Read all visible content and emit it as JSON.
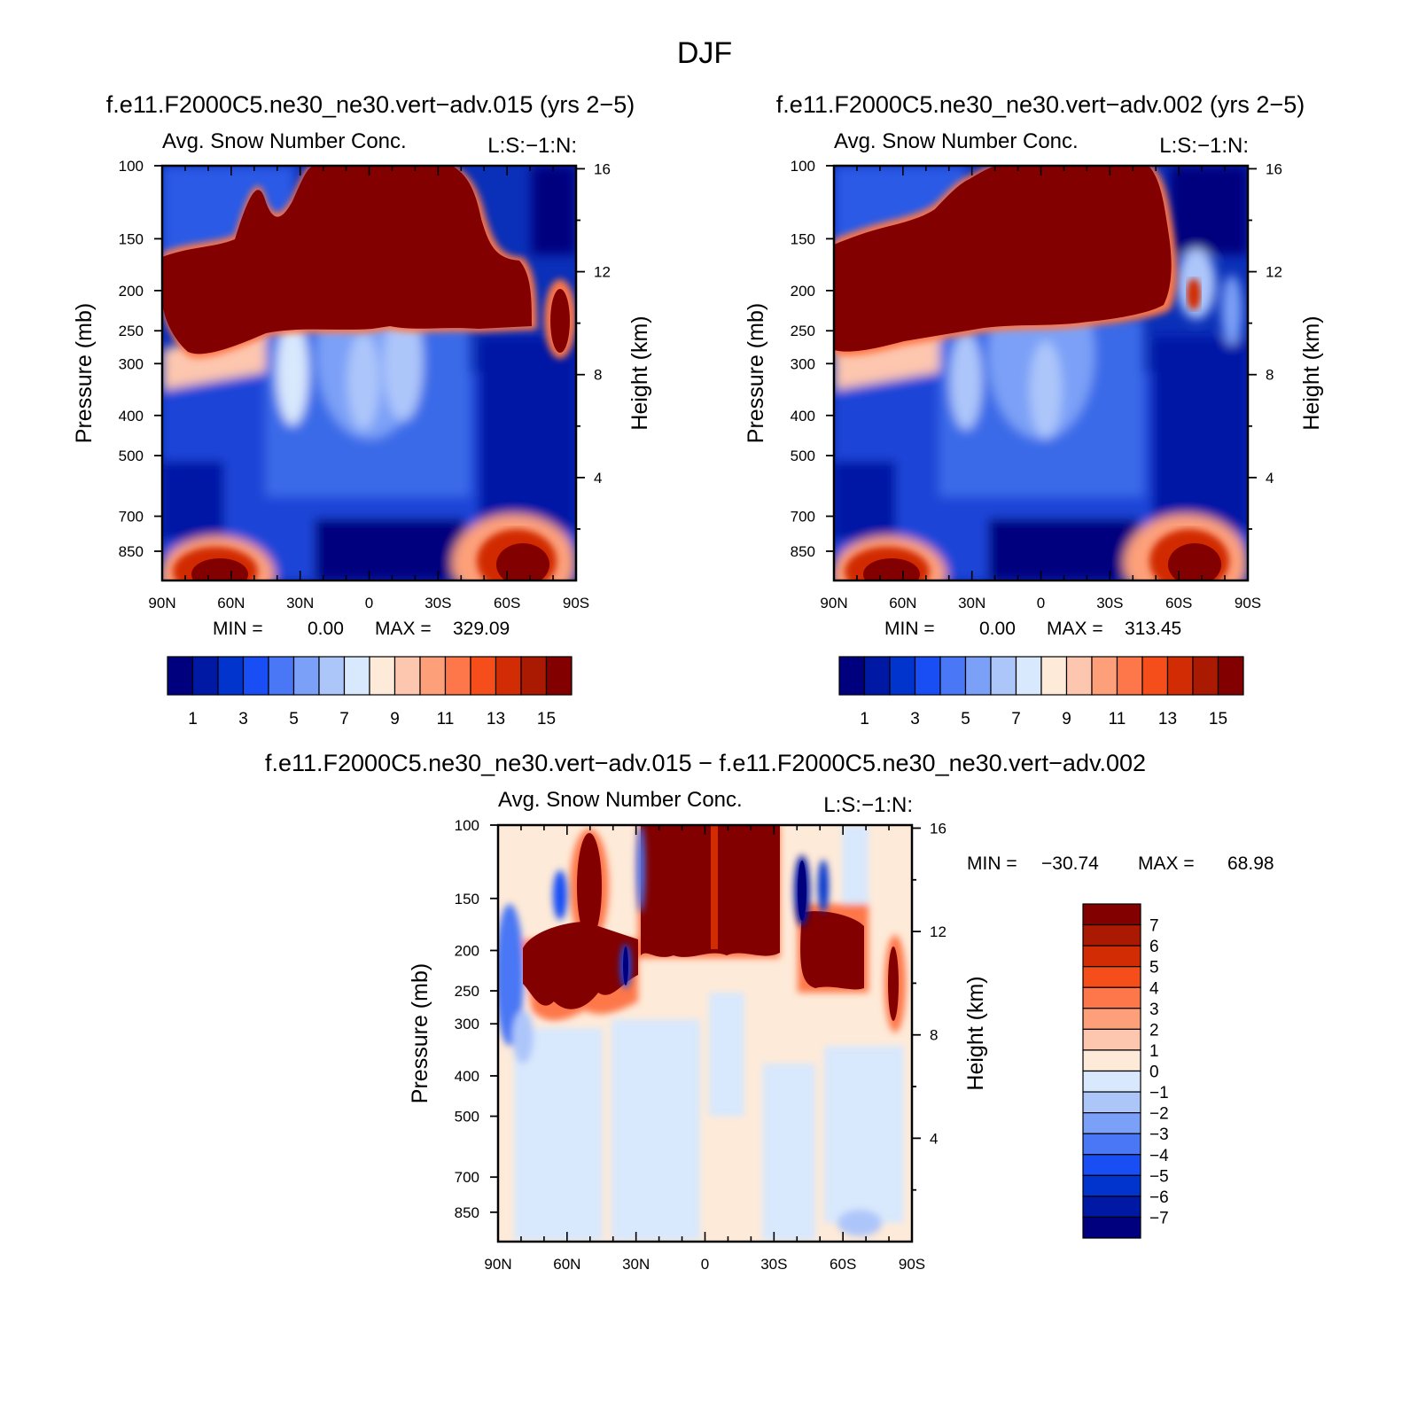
{
  "figure": {
    "season": "DJF",
    "diff_title": "f.e11.F2000C5.ne30_ne30.vert−adv.015 − f.e11.F2000C5.ne30_ne30.vert−adv.002"
  },
  "colors": {
    "full": [
      "#00007f",
      "#0019a5",
      "#0133cd",
      "#194ef5",
      "#4977f5",
      "#7ba0f7",
      "#adc6fa",
      "#d8e8fd",
      "#feead8",
      "#fdc6ae",
      "#fda07a",
      "#fd774a",
      "#f54e1a",
      "#d12c03",
      "#aa1a02",
      "#820000"
    ],
    "diff": [
      "#00007f",
      "#0019a5",
      "#0133cd",
      "#194ef5",
      "#4977f5",
      "#7ba0f7",
      "#adc6fa",
      "#d8e8fd",
      "#feead8",
      "#fdc6ae",
      "#fda07a",
      "#fd774a",
      "#f54e1a",
      "#d12c03",
      "#aa1a02",
      "#820000"
    ]
  },
  "chart_data": [
    {
      "type": "heatmap",
      "run_title": "f.e11.F2000C5.ne30_ne30.vert−adv.015 (yrs 2−5)",
      "var_title": "Avg. Snow Number Conc.",
      "right_title": "L:S:−1:N:",
      "ylabel": "Pressure (mb)",
      "y2label": "Height (km)",
      "xticks": [
        "90N",
        "60N",
        "30N",
        "0",
        "30S",
        "60S",
        "90S"
      ],
      "yticks": [
        "100",
        "150",
        "200",
        "250",
        "300",
        "400",
        "500",
        "700",
        "850"
      ],
      "y2ticks": [
        "16",
        "12",
        "8",
        "4"
      ],
      "min_label": "MIN =",
      "min_value": "0.00",
      "max_label": "MAX =",
      "max_value": "329.09",
      "colorbar_labels": [
        "1",
        "3",
        "5",
        "7",
        "9",
        "11",
        "13",
        "15"
      ],
      "colorbar_levels": 16,
      "ylim": [
        100,
        850
      ]
    },
    {
      "type": "heatmap",
      "run_title": "f.e11.F2000C5.ne30_ne30.vert−adv.002 (yrs 2−5)",
      "var_title": "Avg. Snow Number Conc.",
      "right_title": "L:S:−1:N:",
      "ylabel": "Pressure (mb)",
      "y2label": "Height (km)",
      "xticks": [
        "90N",
        "60N",
        "30N",
        "0",
        "30S",
        "60S",
        "90S"
      ],
      "yticks": [
        "100",
        "150",
        "200",
        "250",
        "300",
        "400",
        "500",
        "700",
        "850"
      ],
      "y2ticks": [
        "16",
        "12",
        "8",
        "4"
      ],
      "min_label": "MIN =",
      "min_value": "0.00",
      "max_label": "MAX =",
      "max_value": "313.45",
      "colorbar_labels": [
        "1",
        "3",
        "5",
        "7",
        "9",
        "11",
        "13",
        "15"
      ],
      "colorbar_levels": 16,
      "ylim": [
        100,
        850
      ]
    },
    {
      "type": "heatmap",
      "var_title": "Avg. Snow Number Conc.",
      "right_title": "L:S:−1:N:",
      "ylabel": "Pressure (mb)",
      "y2label": "Height (km)",
      "xticks": [
        "90N",
        "60N",
        "30N",
        "0",
        "30S",
        "60S",
        "90S"
      ],
      "yticks": [
        "100",
        "150",
        "200",
        "250",
        "300",
        "400",
        "500",
        "700",
        "850"
      ],
      "y2ticks": [
        "16",
        "12",
        "8",
        "4"
      ],
      "min_label": "MIN =",
      "min_value": "−30.74",
      "max_label": "MAX =",
      "max_value": "68.98",
      "colorbar_labels": [
        "7",
        "6",
        "5",
        "4",
        "3",
        "2",
        "1",
        "0",
        "−1",
        "−2",
        "−3",
        "−4",
        "−5",
        "−6",
        "−7"
      ],
      "colorbar_levels": 16,
      "ylim": [
        100,
        850
      ]
    }
  ]
}
